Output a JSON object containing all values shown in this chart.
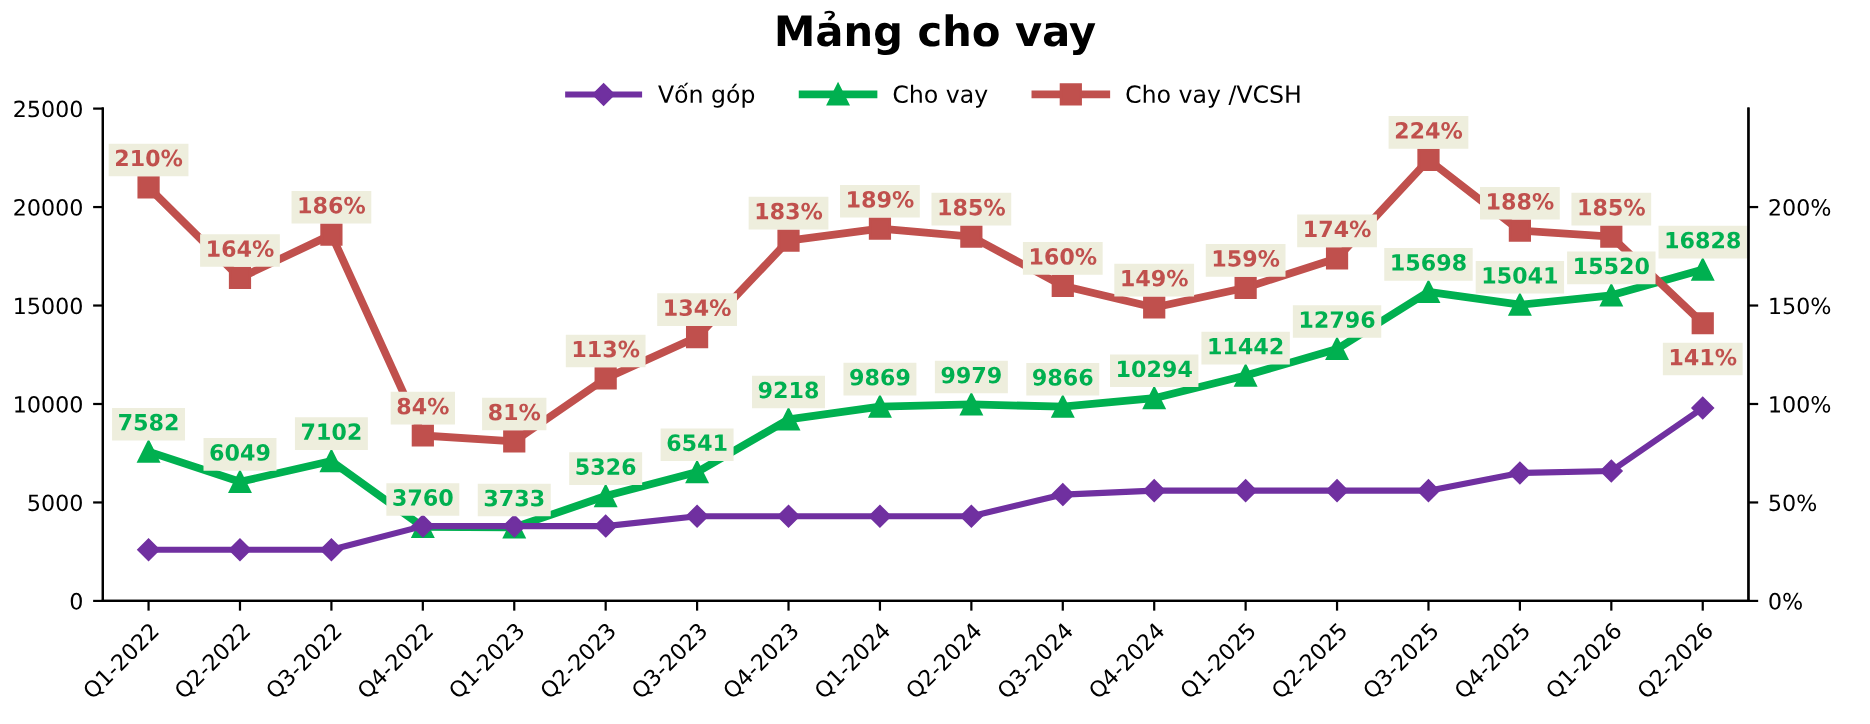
{
  "chart_data": {
    "type": "line",
    "title": "Mảng cho vay",
    "categories": [
      "Q1-2022",
      "Q2-2022",
      "Q3-2022",
      "Q4-2022",
      "Q1-2023",
      "Q2-2023",
      "Q3-2023",
      "Q4-2023",
      "Q1-2024",
      "Q2-2024",
      "Q3-2024",
      "Q4-2024",
      "Q1-2025",
      "Q2-2025",
      "Q3-2025",
      "Q4-2025",
      "Q1-2026",
      "Q2-2026"
    ],
    "series": [
      {
        "name": "Vốn góp",
        "color": "#7030a0",
        "marker": "diamond",
        "values": [
          2600,
          2600,
          2600,
          3800,
          3800,
          3800,
          4300,
          4300,
          4300,
          4300,
          5400,
          5600,
          5600,
          5600,
          5600,
          6500,
          6600,
          9800
        ]
      },
      {
        "name": "Cho vay",
        "color": "#00b050",
        "marker": "triangle",
        "data_labels": true,
        "values": [
          7582,
          6049,
          7102,
          3760,
          3733,
          5326,
          6541,
          9218,
          9869,
          9979,
          9866,
          10294,
          11442,
          12796,
          15698,
          15041,
          15520,
          16828
        ]
      },
      {
        "name": "Cho vay /VCSH",
        "color": "#c0504d",
        "marker": "square",
        "axis": "y2",
        "value_labels": [
          "210%",
          "164%",
          "186%",
          "84%",
          "81%",
          "113%",
          "134%",
          "183%",
          "189%",
          "185%",
          "160%",
          "149%",
          "159%",
          "174%",
          "224%",
          "188%",
          "185%",
          "141%"
        ],
        "values": [
          210,
          164,
          186,
          84,
          81,
          113,
          134,
          183,
          189,
          185,
          160,
          149,
          159,
          174,
          224,
          188,
          185,
          141
        ]
      }
    ],
    "ylim": [
      0,
      25000
    ],
    "yticks": [
      0,
      5000,
      10000,
      15000,
      20000,
      25000
    ],
    "y2lim": [
      0,
      250
    ],
    "y2ticks": [
      {
        "value": 0,
        "label": "0%"
      },
      {
        "value": 50,
        "label": "50%"
      },
      {
        "value": 100,
        "label": "100%"
      },
      {
        "value": 150,
        "label": "150%"
      },
      {
        "value": 200,
        "label": "200%"
      }
    ],
    "legend": "top",
    "grid": false,
    "line_style": "solid"
  }
}
